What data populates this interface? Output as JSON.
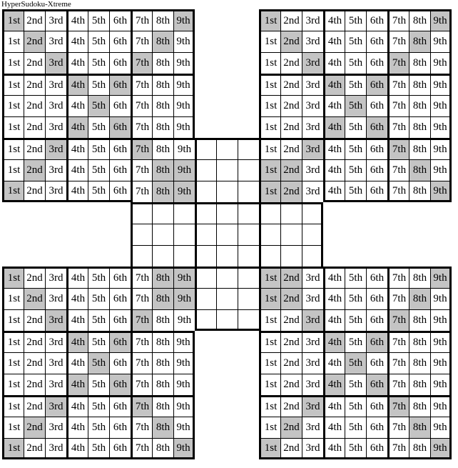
{
  "title": "HyperSudoku-Xtreme",
  "colors": {
    "shaded_cell": "#c4c4c4",
    "grid_line": "#000000",
    "background": "#ffffff",
    "text": "#000000"
  },
  "cell_labels": [
    "1st",
    "2nd",
    "3rd",
    "4th",
    "5th",
    "6th",
    "7th",
    "8th",
    "9th"
  ],
  "puzzle": {
    "grid_size": 9,
    "box_size": 3,
    "overall_rows": 21,
    "overall_cols": 21,
    "grids": [
      {
        "id": "top-left",
        "origin_row": 1,
        "origin_col": 1,
        "empty": false,
        "shaded_cols_by_row": [
          [
            1,
            9
          ],
          [
            2,
            8
          ],
          [
            3,
            7
          ],
          [
            4,
            6
          ],
          [
            5
          ],
          [
            4,
            6
          ],
          [
            3,
            7
          ],
          [
            2,
            8,
            9
          ],
          [
            1,
            8,
            9
          ]
        ]
      },
      {
        "id": "top-right",
        "origin_row": 1,
        "origin_col": 13,
        "empty": false,
        "shaded_cols_by_row": [
          [
            1,
            9
          ],
          [
            2,
            8
          ],
          [
            3,
            7
          ],
          [
            4,
            6
          ],
          [
            5
          ],
          [
            4,
            6
          ],
          [
            3,
            7
          ],
          [
            1,
            2,
            8
          ],
          [
            1,
            2,
            9
          ]
        ]
      },
      {
        "id": "bottom-left",
        "origin_row": 13,
        "origin_col": 1,
        "empty": false,
        "shaded_cols_by_row": [
          [
            1,
            8,
            9
          ],
          [
            2,
            8,
            9
          ],
          [
            3,
            7
          ],
          [
            4,
            6
          ],
          [
            5
          ],
          [
            4,
            6
          ],
          [
            3,
            7
          ],
          [
            2,
            8
          ],
          [
            1,
            9
          ]
        ]
      },
      {
        "id": "bottom-right",
        "origin_row": 13,
        "origin_col": 13,
        "empty": false,
        "shaded_cols_by_row": [
          [
            1,
            2,
            9
          ],
          [
            1,
            2,
            8
          ],
          [
            3,
            7
          ],
          [
            4,
            6
          ],
          [
            5
          ],
          [
            4,
            6
          ],
          [
            3,
            7
          ],
          [
            2,
            8
          ],
          [
            1,
            9
          ]
        ]
      },
      {
        "id": "center",
        "origin_row": 7,
        "origin_col": 7,
        "empty": true,
        "shaded_cols_by_row": [
          [],
          [],
          [],
          [],
          [],
          [],
          [],
          [],
          []
        ]
      }
    ]
  }
}
